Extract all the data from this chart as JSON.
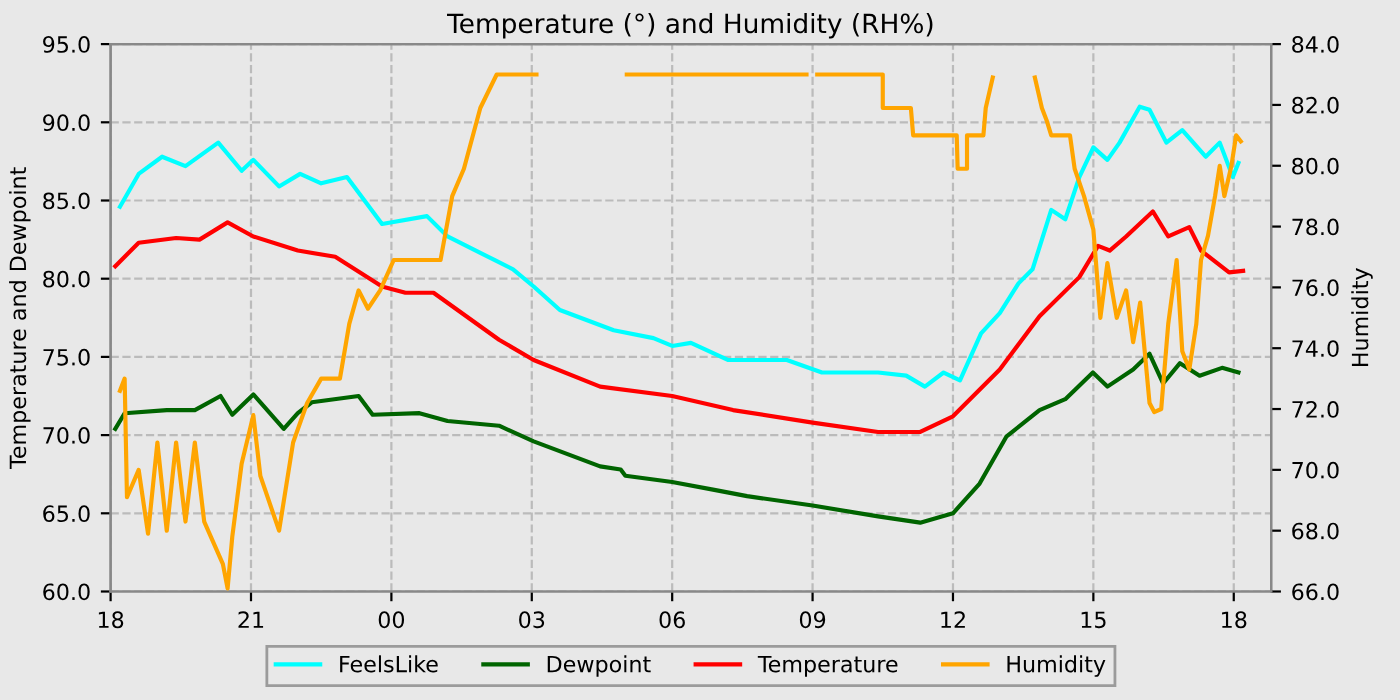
{
  "chart_data": {
    "type": "line",
    "title": "Temperature (°) and Humidity (RH%)",
    "ylabel": "Temperature and Dewpoint",
    "y2label": "Humidity",
    "xlim": [
      18,
      42.8
    ],
    "xticks": [
      {
        "value": 18,
        "label": "18"
      },
      {
        "value": 21,
        "label": "21"
      },
      {
        "value": 24,
        "label": "00"
      },
      {
        "value": 27,
        "label": "03"
      },
      {
        "value": 30,
        "label": "06"
      },
      {
        "value": 33,
        "label": "09"
      },
      {
        "value": 36,
        "label": "12"
      },
      {
        "value": 39,
        "label": "15"
      },
      {
        "value": 42,
        "label": "18"
      }
    ],
    "ylim": [
      60,
      95
    ],
    "yticks": [
      {
        "value": 60,
        "label": "60.0"
      },
      {
        "value": 65,
        "label": "65.0"
      },
      {
        "value": 70,
        "label": "70.0"
      },
      {
        "value": 75,
        "label": "75.0"
      },
      {
        "value": 80,
        "label": "80.0"
      },
      {
        "value": 85,
        "label": "85.0"
      },
      {
        "value": 90,
        "label": "90.0"
      },
      {
        "value": 95,
        "label": "95.0"
      }
    ],
    "y2lim": [
      66,
      84
    ],
    "y2ticks": [
      {
        "value": 66,
        "label": "66.0"
      },
      {
        "value": 68,
        "label": "68.0"
      },
      {
        "value": 70,
        "label": "70.0"
      },
      {
        "value": 72,
        "label": "72.0"
      },
      {
        "value": 74,
        "label": "74.0"
      },
      {
        "value": 76,
        "label": "76.0"
      },
      {
        "value": 78,
        "label": "78.0"
      },
      {
        "value": 80,
        "label": "80.0"
      },
      {
        "value": 82,
        "label": "82.0"
      },
      {
        "value": 84,
        "label": "84.0"
      }
    ],
    "grid": true,
    "legend": "bottom",
    "line_style": "solid",
    "marker": "none",
    "series": [
      {
        "name": "FeelsLike",
        "color": "#00ffff",
        "x": [
          18.2,
          18.6,
          19.1,
          19.6,
          20.3,
          20.8,
          21.05,
          21.6,
          22.05,
          22.5,
          23.05,
          23.8,
          24.76,
          25.2,
          26.2,
          26.6,
          27.04,
          27.6,
          28.75,
          29.6,
          30.0,
          30.4,
          31.2,
          32.45,
          33.2,
          34.4,
          35.0,
          35.4,
          35.8,
          36.15,
          36.6,
          37.0,
          37.4,
          37.7,
          38.1,
          38.4,
          38.7,
          39.0,
          39.3,
          39.56,
          39.99,
          40.2,
          40.56,
          40.9,
          41.4,
          41.7,
          41.98,
          42.1
        ],
        "values": [
          84.6,
          86.7,
          87.8,
          87.2,
          88.7,
          86.9,
          87.6,
          85.9,
          86.7,
          86.1,
          86.5,
          83.5,
          84.0,
          82.7,
          81.2,
          80.6,
          79.5,
          78.0,
          76.7,
          76.2,
          75.7,
          75.9,
          74.8,
          74.8,
          74.0,
          74.0,
          73.8,
          73.1,
          74.0,
          73.5,
          76.5,
          77.8,
          79.7,
          80.6,
          84.4,
          83.8,
          86.5,
          88.4,
          87.6,
          88.7,
          91.0,
          90.8,
          88.7,
          89.5,
          87.8,
          88.7,
          86.5,
          87.4
        ]
      },
      {
        "name": "Dewpoint",
        "color": "#006400",
        "x": [
          18.1,
          18.3,
          19.2,
          19.8,
          20.35,
          20.6,
          21.05,
          21.7,
          22.0,
          22.3,
          23.3,
          23.6,
          24.6,
          25.2,
          26.3,
          27.04,
          28.46,
          28.9,
          29.0,
          30.0,
          30.9,
          31.6,
          33.0,
          34.4,
          35.3,
          36.0,
          36.57,
          37.14,
          37.85,
          38.4,
          38.99,
          39.3,
          39.85,
          40.2,
          40.49,
          40.85,
          41.27,
          41.75,
          42.1
        ],
        "values": [
          70.4,
          71.4,
          71.6,
          71.6,
          72.5,
          71.3,
          72.6,
          70.4,
          71.4,
          72.1,
          72.5,
          71.3,
          71.4,
          70.9,
          70.6,
          69.6,
          68.0,
          67.8,
          67.4,
          67.0,
          66.5,
          66.1,
          65.5,
          64.8,
          64.4,
          65.0,
          66.9,
          69.9,
          71.6,
          72.3,
          74.0,
          73.1,
          74.2,
          75.2,
          73.3,
          74.6,
          73.8,
          74.3,
          74.0
        ]
      },
      {
        "name": "Temperature",
        "color": "#ff0000",
        "x": [
          18.1,
          18.6,
          19.4,
          19.9,
          20.5,
          21.05,
          22.0,
          22.8,
          23.8,
          24.3,
          24.9,
          26.3,
          27.04,
          28.46,
          30.0,
          31.3,
          33.0,
          34.4,
          35.3,
          36.0,
          37.0,
          37.85,
          38.7,
          39.1,
          39.35,
          39.7,
          40.27,
          40.6,
          41.05,
          41.3,
          41.9,
          42.2
        ],
        "values": [
          80.8,
          82.3,
          82.6,
          82.5,
          83.6,
          82.7,
          81.8,
          81.4,
          79.5,
          79.1,
          79.1,
          76.1,
          74.8,
          73.1,
          72.5,
          71.6,
          70.8,
          70.2,
          70.2,
          71.2,
          74.2,
          77.6,
          80.1,
          82.1,
          81.8,
          82.7,
          84.3,
          82.7,
          83.3,
          81.8,
          80.4,
          80.5
        ]
      },
      {
        "name": "Humidity",
        "color": "#ffa500",
        "axis": "y2",
        "x": [
          18.2,
          18.3,
          18.35,
          18.6,
          18.8,
          19.0,
          19.2,
          19.4,
          19.6,
          19.8,
          20.0,
          20.4,
          20.5,
          20.6,
          20.8,
          21.05,
          21.2,
          21.6,
          21.9,
          22.2,
          22.5,
          22.9,
          23.1,
          23.3,
          23.5,
          23.76,
          24.05,
          25.05,
          25.3,
          25.55,
          25.9,
          26.25,
          27.1,
          28.0,
          29.03,
          32.87,
          33.0,
          33.1,
          34.5,
          34.5,
          35.1,
          35.15,
          36.08,
          36.1,
          36.3,
          36.3,
          36.65,
          36.7,
          36.85,
          37.3,
          37.75,
          37.9,
          38.0,
          38.1,
          38.5,
          38.6,
          38.8,
          39.0,
          39.15,
          39.3,
          39.5,
          39.7,
          39.85,
          40.0,
          40.2,
          40.3,
          40.45,
          40.6,
          40.78,
          40.9,
          41.05,
          41.2,
          41.3,
          41.45,
          41.6,
          41.7,
          41.8,
          41.95,
          42.05,
          42.15
        ],
        "values": [
          72.6,
          73.0,
          69.1,
          70.0,
          67.9,
          70.9,
          68.0,
          70.9,
          68.3,
          70.9,
          68.3,
          66.9,
          66.1,
          67.8,
          70.2,
          71.8,
          69.8,
          68.0,
          70.9,
          72.2,
          73.0,
          73.0,
          74.8,
          75.9,
          75.3,
          75.9,
          76.9,
          76.9,
          79.0,
          79.9,
          81.9,
          83.0,
          83.0,
          null,
          83.0,
          83.0,
          null,
          83.0,
          83.0,
          81.9,
          81.9,
          81.0,
          81.0,
          79.9,
          79.9,
          81.0,
          81.0,
          81.9,
          82.9,
          null,
          82.9,
          81.9,
          81.5,
          81.0,
          81.0,
          79.9,
          79.0,
          77.9,
          75.0,
          76.8,
          75.0,
          75.9,
          74.2,
          75.5,
          72.2,
          71.9,
          72.0,
          74.8,
          76.9,
          73.9,
          73.3,
          74.8,
          76.9,
          77.7,
          79.0,
          80.0,
          79.0,
          80.0,
          81.0,
          80.8
        ]
      }
    ]
  }
}
